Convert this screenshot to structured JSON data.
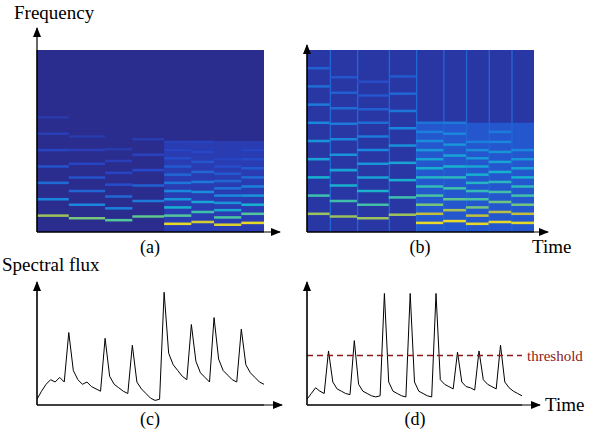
{
  "chart_data": [
    {
      "type": "spectrogram",
      "panel": "(a)",
      "y_label": "Frequency",
      "xlim": [
        0,
        1
      ],
      "ylim": [
        0,
        1
      ],
      "zlim": [
        0,
        1
      ],
      "tick_labels": false,
      "bands": [
        {
          "t0": 0,
          "t1": 1,
          "f0": 0,
          "f1": 1,
          "level": 0
        },
        {
          "t0": 0.56,
          "t1": 1,
          "f0": 0,
          "f1": 0.5,
          "level": 0.12
        }
      ],
      "notes": [
        {
          "t0": 0,
          "t1": 0.14,
          "partials": [
            [
              0.09,
              0.8
            ],
            [
              0.18,
              0.4
            ],
            [
              0.27,
              0.32
            ],
            [
              0.36,
              0.24
            ],
            [
              0.45,
              0.18
            ],
            [
              0.54,
              0.14
            ],
            [
              0.63,
              0.1
            ]
          ]
        },
        {
          "t0": 0.14,
          "t1": 0.3,
          "partials": [
            [
              0.075,
              0.75
            ],
            [
              0.15,
              0.4
            ],
            [
              0.225,
              0.3
            ],
            [
              0.3,
              0.24
            ],
            [
              0.375,
              0.18
            ],
            [
              0.45,
              0.14
            ],
            [
              0.525,
              0.1
            ]
          ]
        },
        {
          "t0": 0.3,
          "t1": 0.42,
          "partials": [
            [
              0.065,
              0.7
            ],
            [
              0.13,
              0.38
            ],
            [
              0.195,
              0.3
            ],
            [
              0.26,
              0.22
            ],
            [
              0.325,
              0.18
            ],
            [
              0.39,
              0.14
            ],
            [
              0.455,
              0.1
            ]
          ]
        },
        {
          "t0": 0.42,
          "t1": 0.56,
          "partials": [
            [
              0.085,
              0.72
            ],
            [
              0.17,
              0.36
            ],
            [
              0.255,
              0.28
            ],
            [
              0.34,
              0.2
            ],
            [
              0.425,
              0.16
            ],
            [
              0.51,
              0.12
            ]
          ]
        },
        {
          "t0": 0.56,
          "t1": 0.68,
          "partials": [
            [
              0.045,
              0.95
            ],
            [
              0.09,
              0.7
            ],
            [
              0.135,
              0.55
            ],
            [
              0.18,
              0.45
            ],
            [
              0.225,
              0.4
            ],
            [
              0.27,
              0.35
            ],
            [
              0.315,
              0.3
            ],
            [
              0.36,
              0.26
            ],
            [
              0.405,
              0.22
            ],
            [
              0.45,
              0.18
            ],
            [
              0.495,
              0.15
            ]
          ]
        },
        {
          "t0": 0.68,
          "t1": 0.78,
          "partials": [
            [
              0.055,
              0.9
            ],
            [
              0.11,
              0.65
            ],
            [
              0.165,
              0.5
            ],
            [
              0.22,
              0.42
            ],
            [
              0.275,
              0.36
            ],
            [
              0.33,
              0.3
            ],
            [
              0.385,
              0.25
            ],
            [
              0.44,
              0.2
            ],
            [
              0.495,
              0.16
            ]
          ]
        },
        {
          "t0": 0.78,
          "t1": 0.9,
          "partials": [
            [
              0.04,
              0.92
            ],
            [
              0.08,
              0.68
            ],
            [
              0.12,
              0.52
            ],
            [
              0.16,
              0.45
            ],
            [
              0.2,
              0.4
            ],
            [
              0.24,
              0.34
            ],
            [
              0.28,
              0.3
            ],
            [
              0.32,
              0.26
            ],
            [
              0.36,
              0.22
            ],
            [
              0.4,
              0.18
            ]
          ]
        },
        {
          "t0": 0.9,
          "t1": 1,
          "partials": [
            [
              0.05,
              0.95
            ],
            [
              0.1,
              0.7
            ],
            [
              0.15,
              0.55
            ],
            [
              0.2,
              0.45
            ],
            [
              0.25,
              0.38
            ],
            [
              0.3,
              0.32
            ],
            [
              0.35,
              0.27
            ],
            [
              0.4,
              0.22
            ],
            [
              0.45,
              0.18
            ]
          ]
        }
      ]
    },
    {
      "type": "spectrogram",
      "panel": "(b)",
      "x_label": "Time",
      "xlim": [
        0,
        1
      ],
      "ylim": [
        0,
        1
      ],
      "zlim": [
        0,
        1
      ],
      "tick_labels": false,
      "bands": [
        {
          "t0": 0,
          "t1": 1,
          "f0": 0,
          "f1": 1,
          "level": 0.08
        },
        {
          "t0": 0.48,
          "t1": 1,
          "f0": 0,
          "f1": 0.6,
          "level": 0.25
        },
        {
          "t0": 0.1,
          "t1": 0.106,
          "f0": 0,
          "f1": 1,
          "level": 0.3
        },
        {
          "t0": 0.22,
          "t1": 0.226,
          "f0": 0,
          "f1": 1,
          "level": 0.3
        },
        {
          "t0": 0.36,
          "t1": 0.366,
          "f0": 0,
          "f1": 1,
          "level": 0.3
        },
        {
          "t0": 0.48,
          "t1": 0.486,
          "f0": 0,
          "f1": 1,
          "level": 0.3
        },
        {
          "t0": 0.6,
          "t1": 0.606,
          "f0": 0,
          "f1": 1,
          "level": 0.3
        },
        {
          "t0": 0.7,
          "t1": 0.706,
          "f0": 0,
          "f1": 1,
          "level": 0.3
        },
        {
          "t0": 0.8,
          "t1": 0.806,
          "f0": 0,
          "f1": 1,
          "level": 0.3
        },
        {
          "t0": 0.9,
          "t1": 0.906,
          "f0": 0,
          "f1": 1,
          "level": 0.3
        }
      ],
      "notes": [
        {
          "t0": 0,
          "t1": 0.1,
          "partials": [
            [
              0.1,
              0.8
            ],
            [
              0.2,
              0.65
            ],
            [
              0.3,
              0.55
            ],
            [
              0.4,
              0.5
            ],
            [
              0.5,
              0.45
            ],
            [
              0.6,
              0.4
            ],
            [
              0.7,
              0.36
            ],
            [
              0.8,
              0.32
            ],
            [
              0.9,
              0.28
            ]
          ]
        },
        {
          "t0": 0.1,
          "t1": 0.22,
          "partials": [
            [
              0.085,
              0.8
            ],
            [
              0.17,
              0.65
            ],
            [
              0.255,
              0.55
            ],
            [
              0.34,
              0.5
            ],
            [
              0.425,
              0.45
            ],
            [
              0.51,
              0.4
            ],
            [
              0.595,
              0.36
            ],
            [
              0.68,
              0.32
            ],
            [
              0.765,
              0.28
            ],
            [
              0.85,
              0.25
            ]
          ]
        },
        {
          "t0": 0.22,
          "t1": 0.36,
          "partials": [
            [
              0.075,
              0.8
            ],
            [
              0.15,
              0.66
            ],
            [
              0.225,
              0.56
            ],
            [
              0.3,
              0.5
            ],
            [
              0.375,
              0.45
            ],
            [
              0.45,
              0.4
            ],
            [
              0.525,
              0.36
            ],
            [
              0.6,
              0.32
            ],
            [
              0.675,
              0.28
            ],
            [
              0.75,
              0.25
            ],
            [
              0.825,
              0.22
            ]
          ]
        },
        {
          "t0": 0.36,
          "t1": 0.48,
          "partials": [
            [
              0.095,
              0.8
            ],
            [
              0.19,
              0.65
            ],
            [
              0.285,
              0.55
            ],
            [
              0.38,
              0.5
            ],
            [
              0.475,
              0.44
            ],
            [
              0.57,
              0.4
            ],
            [
              0.665,
              0.35
            ],
            [
              0.76,
              0.3
            ],
            [
              0.855,
              0.26
            ]
          ]
        },
        {
          "t0": 0.48,
          "t1": 0.6,
          "partials": [
            [
              0.05,
              0.95
            ],
            [
              0.1,
              0.85
            ],
            [
              0.15,
              0.75
            ],
            [
              0.2,
              0.68
            ],
            [
              0.25,
              0.62
            ],
            [
              0.3,
              0.58
            ],
            [
              0.35,
              0.54
            ],
            [
              0.4,
              0.5
            ],
            [
              0.45,
              0.46
            ],
            [
              0.5,
              0.42
            ],
            [
              0.55,
              0.38
            ],
            [
              0.6,
              0.34
            ]
          ]
        },
        {
          "t0": 0.6,
          "t1": 0.7,
          "partials": [
            [
              0.06,
              0.95
            ],
            [
              0.12,
              0.82
            ],
            [
              0.18,
              0.72
            ],
            [
              0.24,
              0.66
            ],
            [
              0.3,
              0.6
            ],
            [
              0.36,
              0.55
            ],
            [
              0.42,
              0.5
            ],
            [
              0.48,
              0.45
            ],
            [
              0.54,
              0.4
            ],
            [
              0.6,
              0.36
            ]
          ]
        },
        {
          "t0": 0.7,
          "t1": 0.8,
          "partials": [
            [
              0.045,
              0.95
            ],
            [
              0.09,
              0.85
            ],
            [
              0.135,
              0.75
            ],
            [
              0.18,
              0.68
            ],
            [
              0.225,
              0.62
            ],
            [
              0.27,
              0.58
            ],
            [
              0.315,
              0.54
            ],
            [
              0.36,
              0.5
            ],
            [
              0.405,
              0.46
            ],
            [
              0.45,
              0.42
            ],
            [
              0.495,
              0.38
            ]
          ]
        },
        {
          "t0": 0.8,
          "t1": 0.9,
          "partials": [
            [
              0.055,
              0.95
            ],
            [
              0.11,
              0.84
            ],
            [
              0.165,
              0.74
            ],
            [
              0.22,
              0.66
            ],
            [
              0.275,
              0.6
            ],
            [
              0.33,
              0.55
            ],
            [
              0.385,
              0.5
            ],
            [
              0.44,
              0.45
            ],
            [
              0.495,
              0.4
            ],
            [
              0.55,
              0.36
            ]
          ]
        },
        {
          "t0": 0.9,
          "t1": 1,
          "partials": [
            [
              0.05,
              0.95
            ],
            [
              0.1,
              0.85
            ],
            [
              0.15,
              0.74
            ],
            [
              0.2,
              0.66
            ],
            [
              0.25,
              0.6
            ],
            [
              0.3,
              0.55
            ],
            [
              0.35,
              0.5
            ],
            [
              0.4,
              0.45
            ],
            [
              0.45,
              0.4
            ]
          ]
        }
      ]
    },
    {
      "type": "line",
      "panel": "(c)",
      "y_label": "Spectral flux",
      "xlim": [
        0,
        1
      ],
      "ylim": [
        0,
        1
      ],
      "tick_labels": false,
      "color": "#000000",
      "x": [
        0,
        0.02,
        0.04,
        0.06,
        0.08,
        0.1,
        0.12,
        0.14,
        0.16,
        0.18,
        0.2,
        0.22,
        0.24,
        0.26,
        0.28,
        0.3,
        0.32,
        0.34,
        0.36,
        0.38,
        0.4,
        0.42,
        0.44,
        0.46,
        0.48,
        0.5,
        0.52,
        0.54,
        0.56,
        0.58,
        0.6,
        0.62,
        0.64,
        0.66,
        0.68,
        0.7,
        0.72,
        0.74,
        0.76,
        0.78,
        0.8,
        0.82,
        0.84,
        0.86,
        0.88,
        0.9,
        0.92,
        0.94,
        0.96,
        0.98,
        1
      ],
      "values": [
        0.05,
        0.12,
        0.18,
        0.22,
        0.2,
        0.24,
        0.2,
        0.63,
        0.3,
        0.22,
        0.18,
        0.2,
        0.16,
        0.14,
        0.12,
        0.58,
        0.25,
        0.18,
        0.15,
        0.12,
        0.1,
        0.52,
        0.2,
        0.14,
        0.1,
        0.06,
        0.04,
        0.05,
        0.98,
        0.45,
        0.35,
        0.3,
        0.25,
        0.22,
        0.7,
        0.38,
        0.28,
        0.24,
        0.2,
        0.76,
        0.4,
        0.3,
        0.26,
        0.22,
        0.2,
        0.66,
        0.35,
        0.28,
        0.24,
        0.2,
        0.18
      ]
    },
    {
      "type": "line",
      "panel": "(d)",
      "x_label": "Time",
      "xlim": [
        0,
        1
      ],
      "ylim": [
        0,
        1
      ],
      "tick_labels": false,
      "color": "#000000",
      "threshold": {
        "value": 0.43,
        "label": "threshold",
        "color": "#8b1a1a",
        "line_style": "dashed"
      },
      "x": [
        0,
        0.02,
        0.04,
        0.06,
        0.08,
        0.1,
        0.12,
        0.14,
        0.16,
        0.18,
        0.2,
        0.22,
        0.24,
        0.26,
        0.28,
        0.3,
        0.32,
        0.34,
        0.36,
        0.38,
        0.4,
        0.42,
        0.44,
        0.46,
        0.48,
        0.5,
        0.52,
        0.54,
        0.56,
        0.58,
        0.6,
        0.62,
        0.64,
        0.66,
        0.68,
        0.7,
        0.72,
        0.74,
        0.76,
        0.78,
        0.8,
        0.82,
        0.84,
        0.86,
        0.88,
        0.9,
        0.92,
        0.94,
        0.96,
        0.98,
        1
      ],
      "values": [
        0.05,
        0.1,
        0.15,
        0.12,
        0.1,
        0.47,
        0.2,
        0.14,
        0.12,
        0.1,
        0.09,
        0.56,
        0.18,
        0.12,
        0.1,
        0.08,
        0.07,
        0.08,
        0.97,
        0.2,
        0.12,
        0.1,
        0.08,
        0.07,
        0.97,
        0.2,
        0.12,
        0.1,
        0.08,
        0.07,
        0.97,
        0.22,
        0.18,
        0.16,
        0.14,
        0.46,
        0.2,
        0.16,
        0.15,
        0.13,
        0.47,
        0.22,
        0.18,
        0.16,
        0.14,
        0.52,
        0.2,
        0.15,
        0.12,
        0.1,
        0.08
      ]
    }
  ]
}
